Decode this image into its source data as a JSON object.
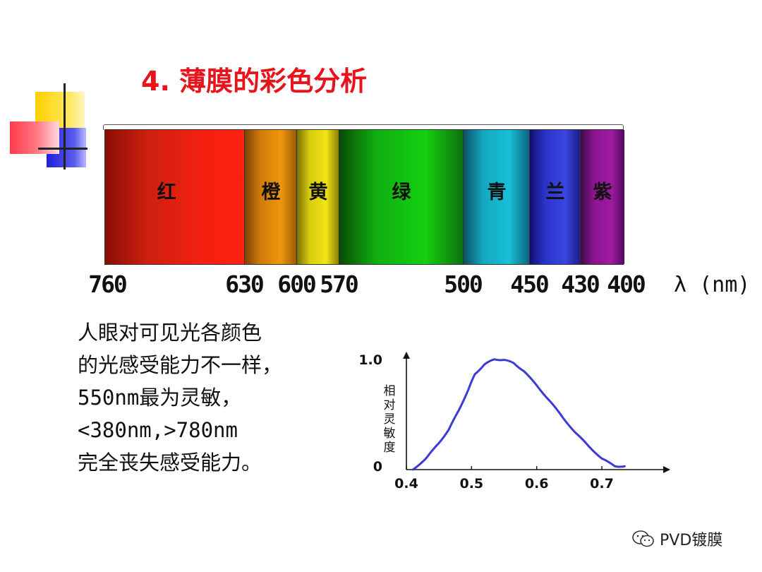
{
  "title": "4. 薄膜的彩色分析",
  "spectrum": {
    "segments": [
      {
        "label": "红",
        "from": 760,
        "to": 630,
        "colors": [
          "#8a0c04",
          "#cc2010",
          "#f42010",
          "#fe2010"
        ]
      },
      {
        "label": "橙",
        "from": 630,
        "to": 600,
        "colors": [
          "#7c4204",
          "#d07a08",
          "#f0960c",
          "#9a5a06"
        ]
      },
      {
        "label": "黄",
        "from": 600,
        "to": 570,
        "colors": [
          "#7a7004",
          "#d8cc10",
          "#f2e414",
          "#8a8006"
        ]
      },
      {
        "label": "绿",
        "from": 570,
        "to": 500,
        "colors": [
          "#0a4a08",
          "#10b010",
          "#14d010",
          "#0f7010"
        ]
      },
      {
        "label": "青",
        "from": 500,
        "to": 450,
        "colors": [
          "#0c5064",
          "#16a8c0",
          "#18c0d8",
          "#0e6480"
        ]
      },
      {
        "label": "兰",
        "from": 450,
        "to": 430,
        "colors": [
          "#101070",
          "#2a34c8",
          "#3a46e0",
          "#1a1e8a"
        ]
      },
      {
        "label": "紫",
        "from": 430,
        "to": 400,
        "colors": [
          "#400a4a",
          "#8c148e",
          "#a01aa0",
          "#500a60"
        ]
      }
    ],
    "ticks": [
      "760",
      "630",
      "600",
      "570",
      "500",
      "450",
      "430",
      "400"
    ],
    "unit": "λ (nm)"
  },
  "description": [
    "人眼对可见光各颜色",
    "的光感受能力不一样，",
    "550nm最为灵敏，",
    "<380nm,>780nm",
    "完全丧失感受能力。"
  ],
  "chart_data": {
    "type": "line",
    "ylabel": "相对灵敏度",
    "xlabel": "",
    "xlim": [
      0.4,
      0.75
    ],
    "ylim": [
      0,
      1.0
    ],
    "x_ticks": [
      "0.4",
      "0.5",
      "0.6",
      "0.7"
    ],
    "y_ticks": [
      "0",
      "1.0"
    ],
    "series": [
      {
        "color": "#3a3ad6",
        "x": [
          0.41,
          0.43,
          0.45,
          0.465,
          0.48,
          0.495,
          0.505,
          0.52,
          0.535,
          0.55,
          0.565,
          0.58,
          0.6,
          0.62,
          0.64,
          0.66,
          0.68,
          0.7,
          0.72,
          0.735
        ],
        "y": [
          0.0,
          0.1,
          0.24,
          0.36,
          0.53,
          0.72,
          0.86,
          0.95,
          0.995,
          0.99,
          0.96,
          0.89,
          0.76,
          0.62,
          0.47,
          0.33,
          0.21,
          0.1,
          0.03,
          0.03
        ]
      }
    ]
  },
  "watermark": "PVD镀膜"
}
